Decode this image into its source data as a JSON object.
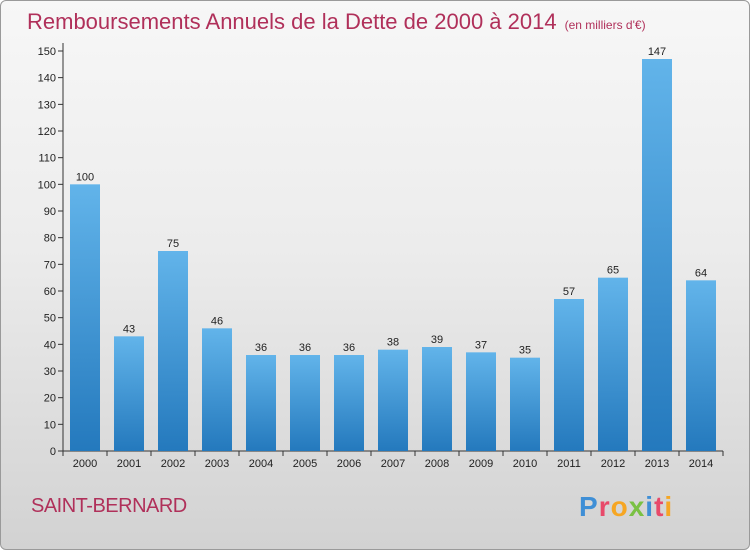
{
  "title": "Remboursements Annuels de la Dette de 2000 à 2014",
  "subtitle": "(en milliers d'€)",
  "place": "SAINT-BERNARD",
  "logo": {
    "text": "Proxiti"
  },
  "colors": {
    "title": "#b0305a",
    "bar_top": "#62b4ea",
    "bar_bottom": "#2479bd"
  },
  "chart_data": {
    "type": "bar",
    "categories": [
      "2000",
      "2001",
      "2002",
      "2003",
      "2004",
      "2005",
      "2006",
      "2007",
      "2008",
      "2009",
      "2010",
      "2011",
      "2012",
      "2013",
      "2014"
    ],
    "values": [
      100,
      43,
      75,
      46,
      36,
      36,
      36,
      38,
      39,
      37,
      35,
      57,
      65,
      147,
      64
    ],
    "data_labels": [
      "100",
      "43",
      "75",
      "46",
      "36",
      "36",
      "36",
      "38",
      "39",
      "37",
      "35",
      "57",
      "65",
      "147",
      "64"
    ],
    "yticks": [
      "0",
      "10",
      "20",
      "30",
      "40",
      "50",
      "60",
      "70",
      "80",
      "90",
      "100",
      "110",
      "120",
      "130",
      "140",
      "150"
    ],
    "ylim": [
      0,
      150
    ],
    "grid": false
  }
}
